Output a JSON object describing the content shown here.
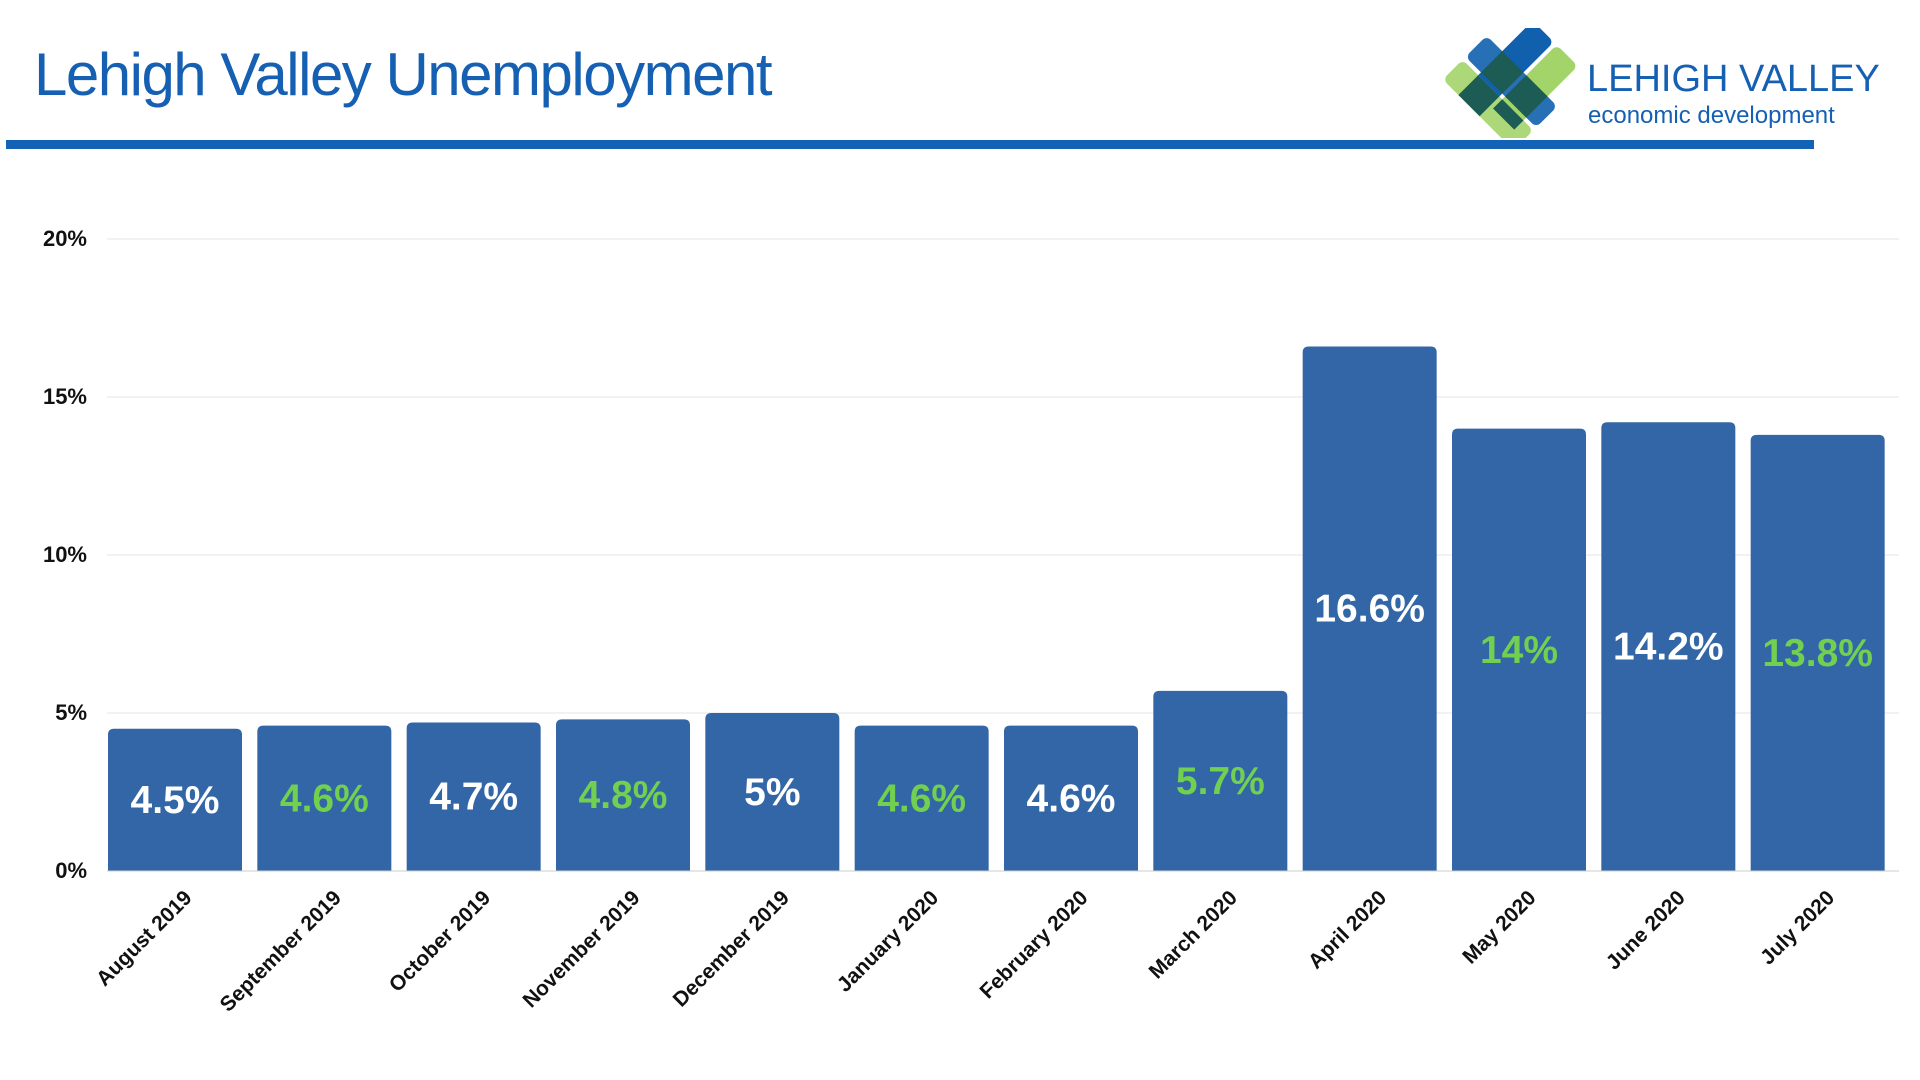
{
  "header": {
    "title": "Lehigh Valley Unemployment",
    "logo_line1": "LEHIGH VALLEY",
    "logo_line2": "economic development"
  },
  "colors": {
    "bar": "#3366a6",
    "label_white": "#ffffff",
    "label_green": "#72d050",
    "title": "#1560b2",
    "grid": "#e6e6e6"
  },
  "chart_data": {
    "type": "bar",
    "title": "Lehigh Valley Unemployment",
    "categories": [
      "August 2019",
      "September 2019",
      "October 2019",
      "November 2019",
      "December 2019",
      "January 2020",
      "February 2020",
      "March 2020",
      "April 2020",
      "May 2020",
      "June 2020",
      "July 2020"
    ],
    "values": [
      4.5,
      4.6,
      4.7,
      4.8,
      5,
      4.6,
      4.6,
      5.7,
      16.6,
      14,
      14.2,
      13.8
    ],
    "data_labels": [
      "4.5%",
      "4.6%",
      "4.7%",
      "4.8%",
      "5%",
      "4.6%",
      "4.6%",
      "5.7%",
      "16.6%",
      "14%",
      "14.2%",
      "13.8%"
    ],
    "yticks": [
      "0%",
      "5%",
      "10%",
      "15%",
      "20%"
    ],
    "ytick_values": [
      0,
      5,
      10,
      15,
      20
    ],
    "ylim": [
      0,
      20
    ],
    "xlabel": "",
    "ylabel": "",
    "grid": true
  }
}
